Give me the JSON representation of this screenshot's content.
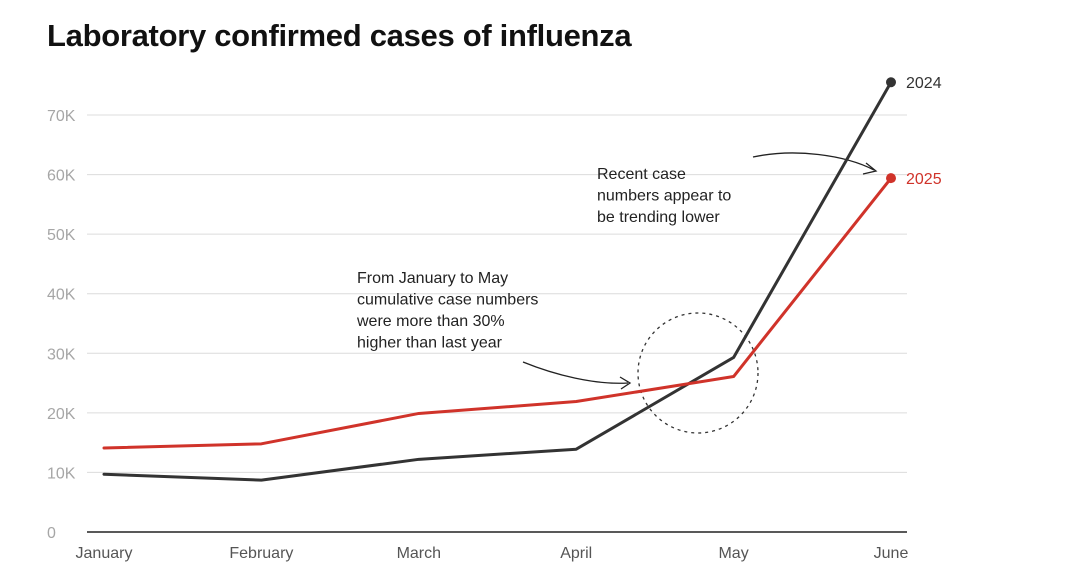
{
  "chart_data": {
    "type": "line",
    "title": "Laboratory confirmed cases of influenza",
    "xlabel": "",
    "ylabel": "",
    "categories": [
      "January",
      "February",
      "March",
      "April",
      "May",
      "June"
    ],
    "ylim": [
      0,
      75000
    ],
    "yticks": [
      0,
      10000,
      20000,
      30000,
      40000,
      50000,
      60000,
      70000
    ],
    "ytick_labels": [
      "0",
      "10K",
      "20K",
      "30K",
      "40K",
      "50K",
      "60K",
      "70K"
    ],
    "grid": true,
    "series": [
      {
        "name": "2024",
        "color": "#333333",
        "values": [
          9700,
          8700,
          12200,
          13900,
          29300,
          75500
        ]
      },
      {
        "name": "2025",
        "color": "#d0332a",
        "values": [
          14100,
          14800,
          19900,
          21900,
          26100,
          59400
        ]
      }
    ],
    "annotations": [
      {
        "id": "recent",
        "lines": [
          "Recent case",
          "numbers appear to",
          "be trending lower"
        ]
      },
      {
        "id": "cumulative",
        "lines": [
          "From January to May",
          "cumulative case numbers",
          "were more than 30%",
          "higher than last year"
        ]
      }
    ]
  }
}
